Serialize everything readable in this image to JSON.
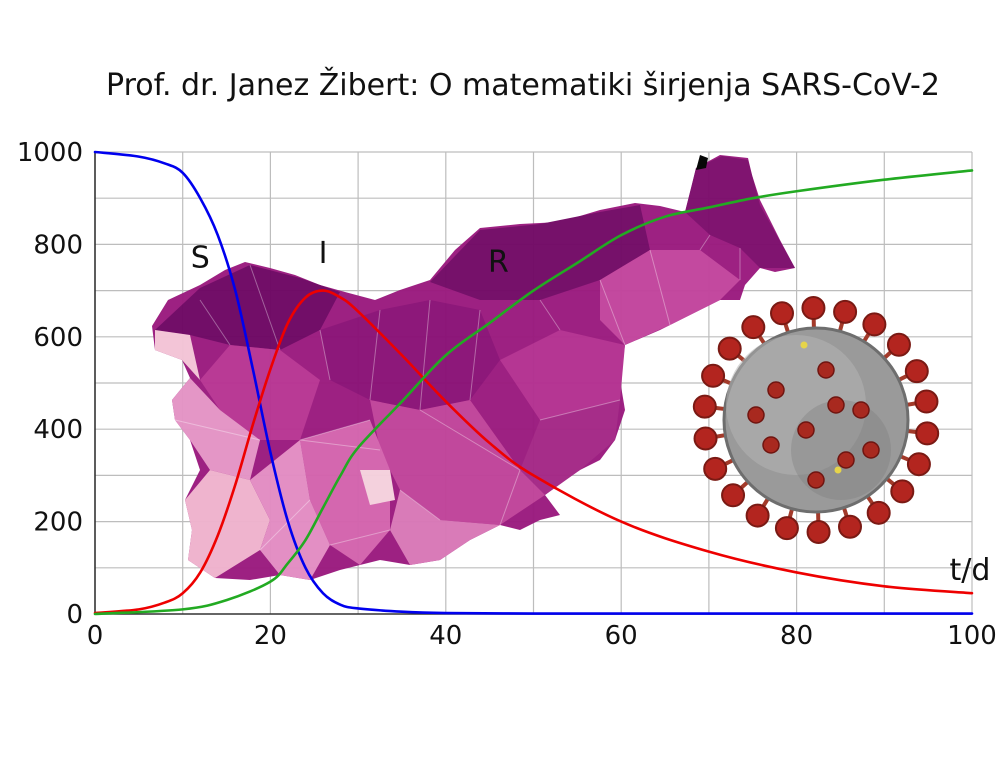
{
  "title": "Prof. dr. Janez Žibert: O matematiki širjenja SARS-CoV-2",
  "colors": {
    "S": "#0000ee",
    "I": "#ee0000",
    "R": "#22aa22",
    "grid": "#bdbdbd",
    "map_dark": "#7a0a6a",
    "map_mid": "#b0338f",
    "map_light": "#e089c4",
    "map_pale": "#f2c0d0",
    "virus_core": "#8a8a8a",
    "virus_spike": "#b3251f"
  },
  "decorations": {
    "map": "map-of-slovenia-municipalities",
    "virus": "coronavirus-illustration"
  },
  "chart_data": {
    "type": "line",
    "xlim": [
      0,
      100
    ],
    "ylim": [
      0,
      1000
    ],
    "xticks": [
      0,
      20,
      40,
      60,
      80,
      100
    ],
    "yticks": [
      0,
      200,
      400,
      600,
      800,
      1000
    ],
    "xunit": "t/d",
    "grid": true,
    "series_labels": [
      {
        "name": "S",
        "x": 12,
        "y": 750
      },
      {
        "name": "I",
        "x": 26,
        "y": 760
      },
      {
        "name": "R",
        "x": 46,
        "y": 740
      }
    ],
    "series": [
      {
        "name": "S",
        "x": [
          0,
          5,
          8,
          10,
          12,
          14,
          16,
          18,
          20,
          22,
          24,
          26,
          28,
          30,
          35,
          40,
          50,
          60,
          80,
          100
        ],
        "values": [
          1000,
          990,
          975,
          955,
          900,
          820,
          700,
          530,
          350,
          200,
          100,
          45,
          20,
          12,
          5,
          2,
          1,
          1,
          1,
          1
        ]
      },
      {
        "name": "I",
        "x": [
          0,
          5,
          8,
          10,
          12,
          14,
          16,
          18,
          20,
          22,
          24,
          26,
          28,
          30,
          35,
          40,
          45,
          50,
          60,
          70,
          80,
          90,
          100
        ],
        "values": [
          2,
          10,
          25,
          45,
          90,
          170,
          280,
          410,
          530,
          630,
          685,
          700,
          685,
          655,
          560,
          460,
          370,
          300,
          200,
          135,
          90,
          60,
          45
        ]
      },
      {
        "name": "R",
        "x": [
          0,
          10,
          15,
          20,
          22,
          24,
          26,
          28,
          30,
          35,
          40,
          45,
          50,
          55,
          60,
          65,
          70,
          75,
          80,
          90,
          100
        ],
        "values": [
          0,
          10,
          30,
          70,
          110,
          160,
          230,
          300,
          360,
          460,
          560,
          630,
          700,
          760,
          820,
          860,
          880,
          900,
          915,
          940,
          960
        ]
      }
    ]
  }
}
